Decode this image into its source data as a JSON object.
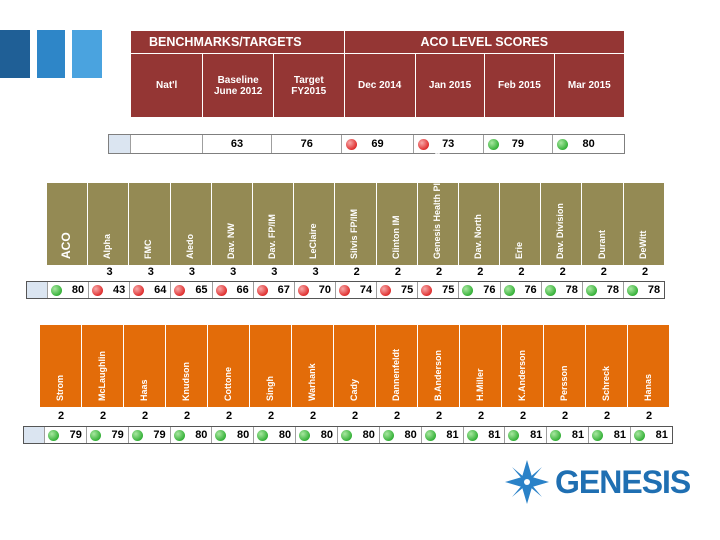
{
  "benchmarks": {
    "title": "BENCHMARKS/TARGETS",
    "aco_title": "ACO LEVEL SCORES",
    "columns": [
      "Nat'l",
      "Baseline June 2012",
      "Target FY2015",
      "Dec 2014",
      "Jan 2015",
      "Feb 2015",
      "Mar 2015"
    ],
    "col_lines": [
      [
        "Nat'l"
      ],
      [
        "Baseline",
        "June 2012"
      ],
      [
        "Target",
        "FY2015"
      ],
      [
        "Dec 2014"
      ],
      [
        "Jan 2015"
      ],
      [
        "Feb 2015"
      ],
      [
        "Mar 2015"
      ]
    ],
    "values": [
      "",
      "63",
      "76",
      "69",
      "73",
      "79",
      "80"
    ],
    "status": [
      "",
      "",
      "",
      "red",
      "red",
      "green",
      "green"
    ]
  },
  "clinics_a": {
    "names": [
      "ACO",
      "Alpha",
      "FMC",
      "Aledo",
      "Dav. NW",
      "Dav. FP/IM",
      "LeClaire",
      "Silvis FP/IM",
      "Clinton IM",
      "Genesis Health Plex - Moline",
      "Dav. North",
      "Erie",
      "Dav. Division",
      "Durant",
      "DeWitt"
    ],
    "ranks": [
      "3",
      "3",
      "3",
      "3",
      "3",
      "3",
      "2",
      "2",
      "2",
      "2",
      "2",
      "2",
      "2",
      "2"
    ],
    "scores": [
      "80",
      "43",
      "64",
      "65",
      "66",
      "67",
      "70",
      "74",
      "75",
      "75",
      "76",
      "76",
      "78",
      "78",
      "78"
    ],
    "status": [
      "green",
      "red",
      "red",
      "red",
      "red",
      "red",
      "red",
      "red",
      "red",
      "red",
      "green",
      "green",
      "green",
      "green",
      "green"
    ]
  },
  "clinics_b": {
    "names": [
      "Strom",
      "McLaughlin",
      "Haas",
      "Knudson",
      "Cottone",
      "Singh",
      "Warhank",
      "Cady",
      "Dannenfeldt",
      "B.Anderson",
      "H.Miller",
      "K.Anderson",
      "Persson",
      "Schreck",
      "Hanas"
    ],
    "ranks": [
      "2",
      "2",
      "2",
      "2",
      "2",
      "2",
      "2",
      "2",
      "2",
      "2",
      "2",
      "2",
      "2",
      "2",
      "2"
    ],
    "scores": [
      "79",
      "79",
      "79",
      "80",
      "80",
      "80",
      "80",
      "80",
      "80",
      "81",
      "81",
      "81",
      "81",
      "81",
      "81"
    ],
    "status": [
      "green",
      "green",
      "green",
      "green",
      "green",
      "green",
      "green",
      "green",
      "green",
      "green",
      "green",
      "green",
      "green",
      "green",
      "green"
    ]
  },
  "logo": {
    "text": "GENESIS"
  },
  "colors": {
    "header": "#943634",
    "olive": "#948a54",
    "orange": "#e36c09",
    "logo": "#1f6fb2"
  }
}
